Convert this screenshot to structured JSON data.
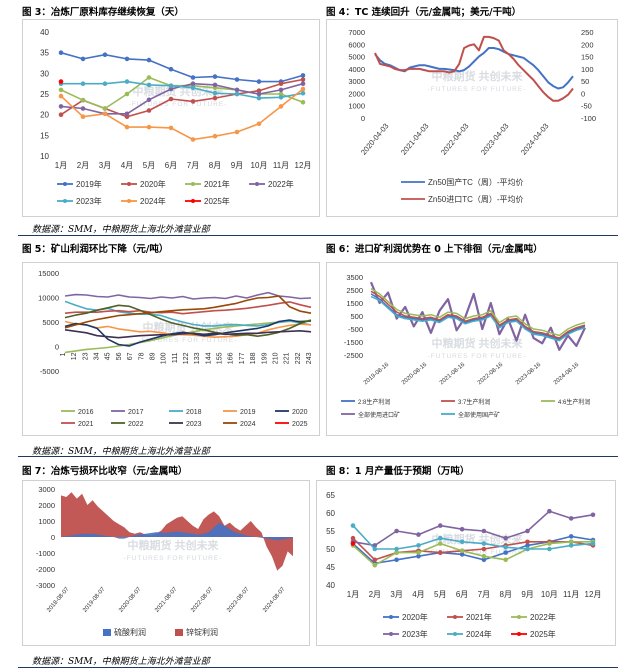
{
  "figures": {
    "fig3": {
      "title": "图 3：冶炼厂原料库存继续恢复（天）"
    },
    "fig4": {
      "title": "图 4：TC 连续回升（元/金属吨；美元/干吨）"
    },
    "fig5": {
      "title": "图 5：矿山利润环比下降（元/吨）"
    },
    "fig6": {
      "title": "图 6：进口矿利润优势在 0 上下徘徊（元/金属吨）"
    },
    "fig7": {
      "title": "图 7：冶炼亏损环比收窄（元/金属吨）"
    },
    "fig8": {
      "title": "图 8：1 月产量低于预期（万吨）"
    }
  },
  "source": {
    "row1": "数据源：SMM，中粮期货上海北外滩营业部",
    "row2": "数据源：SMM，中粮期货上海北外滩营业部",
    "row3": "数据源：SMM，中粮期货上海北外滩营业部"
  },
  "watermark": {
    "cn": "中粮期货 共创未来",
    "en": "FUTURES FOR FUTURE"
  },
  "chart_data": [
    {
      "id": "fig3",
      "type": "line",
      "title": "图 3：冶炼厂原料库存继续恢复（天）",
      "categories": [
        "1月",
        "2月",
        "3月",
        "4月",
        "5月",
        "6月",
        "7月",
        "8月",
        "9月",
        "10月",
        "11月",
        "12月"
      ],
      "ylim": [
        10,
        40
      ],
      "yticks": [
        10,
        15,
        20,
        25,
        30,
        35,
        40
      ],
      "series": [
        {
          "name": "2019年",
          "color": "#4472c4",
          "values": [
            35,
            33.5,
            34.5,
            33.5,
            33.2,
            31,
            29,
            29.2,
            28.5,
            28,
            28,
            29.5
          ]
        },
        {
          "name": "2020年",
          "color": "#c0504d",
          "values": [
            20,
            23.5,
            21.5,
            19.5,
            21,
            23.8,
            23.2,
            24,
            25,
            25.8,
            27.5,
            28.5
          ]
        },
        {
          "name": "2021年",
          "color": "#9bbb59",
          "values": [
            26,
            23.5,
            21.5,
            25,
            29,
            27,
            27,
            26.5,
            26,
            25,
            25,
            23
          ]
        },
        {
          "name": "2022年",
          "color": "#8064a2",
          "values": [
            22,
            21.5,
            20.2,
            20.2,
            23.6,
            26.2,
            27.5,
            27.2,
            26,
            25,
            26,
            27.5
          ]
        },
        {
          "name": "2023年",
          "color": "#4bacc6",
          "values": [
            27.5,
            27.5,
            27.5,
            28,
            27.2,
            27,
            26.5,
            25.2,
            25,
            24,
            24.2,
            25.2
          ]
        },
        {
          "name": "2024年",
          "color": "#f79646",
          "values": [
            24.5,
            19.5,
            20.2,
            17,
            17,
            16.8,
            14,
            14.8,
            15.8,
            17.8,
            22,
            26.2
          ]
        },
        {
          "name": "2025年",
          "color": "#ff0000",
          "values": [
            28,
            null,
            null,
            null,
            null,
            null,
            null,
            null,
            null,
            null,
            null,
            null
          ]
        }
      ]
    },
    {
      "id": "fig4",
      "type": "line",
      "title": "图 4：TC 连续回升（元/金属吨；美元/干吨）",
      "x_ticks": [
        "2020-04-03",
        "2021-04-03",
        "2022-04-03",
        "2023-04-03",
        "2024-04-03"
      ],
      "ylim_left": [
        0,
        7000
      ],
      "yticks_left": [
        0,
        1000,
        2000,
        3000,
        4000,
        5000,
        6000,
        7000
      ],
      "ylim_right": [
        -100,
        250
      ],
      "yticks_right": [
        -100,
        -50,
        0,
        50,
        100,
        150,
        200,
        250
      ],
      "series": [
        {
          "name": "Zn50国产TC（周）-平均价",
          "color": "#4472c4",
          "axis": "left",
          "values": [
            5200,
            4700,
            4400,
            4300,
            4100,
            3900,
            3800,
            4100,
            4200,
            4300,
            4300,
            4200,
            4100,
            4000,
            4000,
            3950,
            3900,
            3800,
            3900,
            4200,
            4600,
            5000,
            5300,
            5700,
            5700,
            5600,
            5400,
            5200,
            5100,
            5000,
            4900,
            4600,
            4300,
            3900,
            3400,
            2900,
            2600,
            2400,
            2500,
            2900,
            3400
          ]
        },
        {
          "name": "Zn50进口TC（周）-平均价",
          "color": "#c0504d",
          "axis": "right",
          "values": [
            165,
            120,
            115,
            110,
            100,
            95,
            95,
            100,
            100,
            100,
            95,
            90,
            90,
            90,
            90,
            85,
            90,
            120,
            185,
            195,
            200,
            175,
            230,
            230,
            225,
            215,
            175,
            160,
            140,
            115,
            95,
            75,
            55,
            30,
            5,
            -15,
            -30,
            -30,
            -20,
            -5,
            20
          ]
        }
      ]
    },
    {
      "id": "fig5",
      "type": "line",
      "title": "图 5：矿山利润环比下降（元/吨）",
      "x_ticks": [
        "1",
        "12",
        "23",
        "34",
        "45",
        "56",
        "67",
        "78",
        "89",
        "100",
        "111",
        "122",
        "133",
        "144",
        "155",
        "166",
        "177",
        "188",
        "199",
        "210",
        "221",
        "232",
        "243"
      ],
      "ylim": [
        -5000,
        15000
      ],
      "yticks": [
        -5000,
        0,
        5000,
        10000,
        15000
      ],
      "series": [
        {
          "name": "2016",
          "color": "#9bbb59",
          "values": [
            -1200,
            -900,
            -600,
            -400,
            -200,
            100,
            400,
            800,
            1200,
            1700,
            2200,
            2600,
            3000,
            3400,
            3700,
            4000,
            4200,
            4400,
            4600,
            4800,
            5000,
            5100,
            5200,
            5300
          ]
        },
        {
          "name": "2017",
          "color": "#8064a2",
          "values": [
            10300,
            10600,
            10500,
            10200,
            10100,
            10500,
            10100,
            10000,
            9800,
            10100,
            9900,
            10200,
            9700,
            9900,
            10000,
            9800,
            10300,
            9900,
            10500,
            11000,
            10300,
            10100,
            9800,
            9900
          ]
        },
        {
          "name": "2018",
          "color": "#4bacc6",
          "values": [
            9200,
            8400,
            7700,
            7400,
            7800,
            7100,
            6800,
            6600,
            6600,
            6300,
            5600,
            5000,
            4500,
            4200,
            4200,
            4400,
            4500,
            4300,
            4200,
            4500,
            4900,
            5200,
            4800,
            4400
          ]
        },
        {
          "name": "2019",
          "color": "#f79646",
          "values": [
            5100,
            4600,
            4400,
            3800,
            4100,
            3600,
            3300,
            3000,
            3100,
            2800,
            2500,
            2400,
            2300,
            2100,
            1900,
            2000,
            2100,
            2400,
            2700,
            3400,
            3900,
            4300,
            4600,
            4400
          ]
        },
        {
          "name": "2020",
          "color": "#1f3864",
          "values": [
            4100,
            4700,
            4400,
            3700,
            1500,
            400,
            100,
            900,
            1500,
            2100,
            2600,
            2900,
            2600,
            2200,
            2400,
            2800,
            3100,
            3400,
            3700,
            4200,
            5100,
            5400,
            5000,
            5200
          ]
        },
        {
          "name": "2021",
          "color": "#c0504d",
          "values": [
            6800,
            7000,
            7000,
            7000,
            7200,
            7300,
            7100,
            7300,
            7000,
            6900,
            7000,
            6700,
            6900,
            7100,
            7300,
            7400,
            7600,
            7800,
            8100,
            8400,
            8800,
            9100,
            8500,
            8000
          ]
        },
        {
          "name": "2022",
          "color": "#4f6228",
          "values": [
            5900,
            6400,
            6800,
            7400,
            7900,
            8400,
            8200,
            7400,
            6500,
            5600,
            4800,
            4300,
            3800,
            3400,
            2900,
            2600,
            2300,
            2400,
            2100,
            2400,
            2900,
            3700,
            4700,
            5400
          ]
        },
        {
          "name": "2023",
          "color": "#3f3151",
          "values": [
            3400,
            3100,
            2800,
            2200,
            2000,
            1800,
            2000,
            2200,
            2300,
            2400,
            2400,
            2600,
            2700,
            2500,
            2700,
            2500,
            2600,
            2700,
            2700,
            2900,
            3000,
            3100,
            3200,
            3000
          ]
        },
        {
          "name": "2024",
          "color": "#984807",
          "values": [
            3800,
            4400,
            5000,
            5500,
            5900,
            6300,
            6500,
            6700,
            6900,
            7100,
            7300,
            7500,
            7600,
            7700,
            8000,
            8400,
            8800,
            9400,
            9900,
            10000,
            10300,
            8100,
            7200,
            6800
          ]
        },
        {
          "name": "2025",
          "color": "#ff0000",
          "values": [
            7800,
            null,
            null,
            null,
            null,
            null,
            null,
            null,
            null,
            null,
            null,
            null,
            null,
            null,
            null,
            null,
            null,
            null,
            null,
            null,
            null,
            null,
            null,
            null
          ]
        }
      ]
    },
    {
      "id": "fig6",
      "type": "line",
      "title": "图 6：进口矿利润优势在 0 上下徘徊（元/金属吨）",
      "x_ticks": [
        "2019-08-16",
        "2020-08-16",
        "2021-08-16",
        "2022-08-16",
        "2023-08-16",
        "2024-08-16"
      ],
      "ylim": [
        -2500,
        3500
      ],
      "yticks": [
        -2500,
        -1500,
        -500,
        500,
        1500,
        2500,
        3500
      ],
      "series": [
        {
          "name": "2:8生产利润",
          "color": "#4472c4",
          "values": [
            2200,
            1800,
            1200,
            600,
            400,
            300,
            200,
            300,
            100,
            500,
            400,
            0,
            200,
            300,
            600,
            -300,
            100,
            200,
            -400,
            -800,
            -900,
            -1100,
            -1300,
            -800,
            -500,
            -300
          ]
        },
        {
          "name": "3:7生产利润",
          "color": "#c0504d",
          "values": [
            2400,
            2000,
            1400,
            800,
            500,
            400,
            300,
            400,
            200,
            600,
            500,
            100,
            300,
            400,
            700,
            -200,
            200,
            300,
            -300,
            -700,
            -800,
            -1000,
            -1200,
            -700,
            -400,
            -200
          ]
        },
        {
          "name": "4:6生产利润",
          "color": "#9bbb59",
          "values": [
            2600,
            2200,
            1600,
            1000,
            700,
            600,
            500,
            600,
            400,
            800,
            700,
            300,
            500,
            600,
            900,
            0,
            400,
            500,
            -100,
            -500,
            -600,
            -800,
            -1000,
            -500,
            -200,
            0
          ]
        },
        {
          "name": "全部使用进口矿",
          "color": "#8064a2",
          "values": [
            3100,
            1500,
            2300,
            300,
            1200,
            -300,
            800,
            -800,
            900,
            1800,
            -600,
            400,
            2200,
            -500,
            1500,
            -900,
            300,
            -1400,
            600,
            -1200,
            -1600,
            -400,
            -2100,
            -1000,
            -1800,
            -400
          ]
        },
        {
          "name": "全部使用国产矿",
          "color": "#4bacc6",
          "values": [
            2000,
            1700,
            1100,
            500,
            300,
            200,
            100,
            200,
            0,
            400,
            300,
            -100,
            100,
            200,
            500,
            -400,
            0,
            100,
            -500,
            -900,
            -1000,
            -1200,
            -1400,
            -900,
            -600,
            -400
          ]
        }
      ]
    },
    {
      "id": "fig7",
      "type": "area",
      "title": "图 7：冶炼亏损环比收窄（元/金属吨）",
      "x_ticks": [
        "2018-08-07",
        "2019-08-07",
        "2020-08-07",
        "2021-08-07",
        "2022-08-07",
        "2023-08-07",
        "2024-08-07"
      ],
      "ylim": [
        -3000,
        3000
      ],
      "yticks": [
        -3000,
        -2000,
        -1000,
        0,
        1000,
        2000,
        3000
      ],
      "series": [
        {
          "name": "硫酸利润",
          "color": "#4472c4",
          "values": [
            0,
            50,
            100,
            150,
            200,
            200,
            200,
            150,
            100,
            50,
            0,
            -100,
            -100,
            0,
            100,
            150,
            200,
            250,
            300,
            300,
            250,
            300,
            350,
            300,
            250,
            200,
            150,
            200,
            300,
            600,
            900,
            700,
            500,
            300,
            200,
            100,
            50,
            0,
            -50,
            -100,
            -150,
            -200,
            -150,
            -100,
            -50
          ]
        },
        {
          "name": "锌锭利润",
          "color": "#c0504d",
          "values": [
            2600,
            2500,
            2800,
            2400,
            2700,
            2000,
            2300,
            1900,
            1600,
            1300,
            1000,
            800,
            600,
            300,
            200,
            300,
            150,
            100,
            200,
            400,
            800,
            1000,
            1200,
            1300,
            1000,
            700,
            500,
            1100,
            1400,
            1600,
            1300,
            700,
            900,
            600,
            400,
            700,
            1000,
            600,
            300,
            -600,
            -1200,
            -2100,
            -1800,
            -900,
            -1200
          ]
        }
      ]
    },
    {
      "id": "fig8",
      "type": "line",
      "title": "图 8：1 月产量低于预期（万吨）",
      "categories": [
        "1月",
        "2月",
        "3月",
        "4月",
        "5月",
        "6月",
        "7月",
        "8月",
        "9月",
        "10月",
        "11月",
        "12月"
      ],
      "ylim": [
        40,
        65
      ],
      "yticks": [
        40,
        45,
        50,
        55,
        60,
        65
      ],
      "series": [
        {
          "name": "2020年",
          "color": "#4472c4",
          "values": [
            51.5,
            46,
            47,
            48,
            49,
            48.5,
            47,
            49,
            51,
            52,
            53.5,
            52.5
          ]
        },
        {
          "name": "2021年",
          "color": "#c0504d",
          "values": [
            53,
            47,
            49,
            49.5,
            49,
            49.5,
            50,
            51,
            52,
            52,
            52,
            51
          ]
        },
        {
          "name": "2022年",
          "color": "#9bbb59",
          "values": [
            51,
            45.5,
            49,
            49,
            51.5,
            49.5,
            48,
            47,
            50,
            51.5,
            52,
            52
          ]
        },
        {
          "name": "2023年",
          "color": "#8064a2",
          "values": [
            52,
            51,
            55,
            54,
            56.5,
            55.5,
            55,
            53,
            55,
            60.5,
            58.5,
            59.5
          ]
        },
        {
          "name": "2024年",
          "color": "#4bacc6",
          "values": [
            56.5,
            50,
            50,
            51,
            53,
            52,
            51.5,
            50.5,
            50,
            50,
            51,
            51.5
          ]
        },
        {
          "name": "2025年",
          "color": "#ff0000",
          "values": [
            51.5,
            null,
            null,
            null,
            null,
            null,
            null,
            null,
            null,
            null,
            null,
            null
          ]
        }
      ]
    }
  ]
}
